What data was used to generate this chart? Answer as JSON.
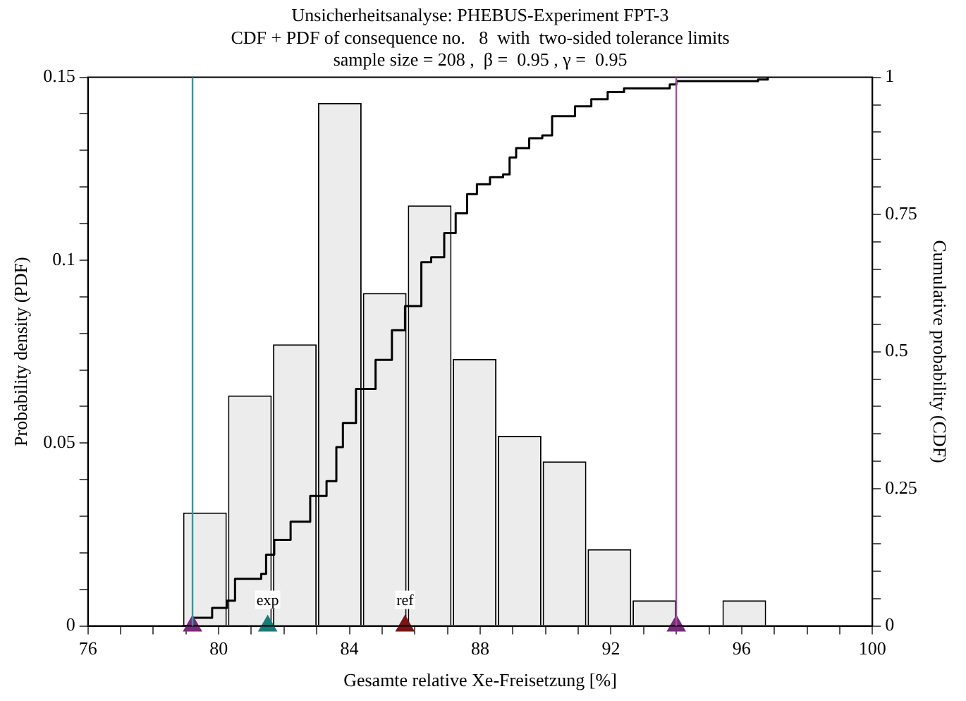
{
  "chart_data": {
    "type": "histogram",
    "title": "Unsicherheitsanalyse: PHEBUS-Experiment FPT-3",
    "subtitle": "CDF + PDF of consequence no.   8  with  two-sided tolerance limits\nsample size = 208 ,  β =  0.95 , γ =  0.95",
    "xlabel": "Gesamte relative Xe-Freisetzung [%]",
    "ylabel": "Probability density (PDF)",
    "y2label": "Cumulative probability (CDF)",
    "bins": [
      78.89,
      80.27,
      81.64,
      83.02,
      84.39,
      85.77,
      87.14,
      88.52,
      89.89,
      91.27,
      92.64,
      94.02,
      95.39,
      96.77
    ],
    "values": [
      0.031,
      0.063,
      0.077,
      0.143,
      0.091,
      0.115,
      0.073,
      0.052,
      0.045,
      0.021,
      0.007,
      0,
      0.007
    ],
    "color": "#ececec",
    "series": [
      {
        "type": "step",
        "axis": "y2",
        "marker": "none",
        "color": "#000000",
        "x": [
          78.89,
          79.19,
          79.8,
          80.25,
          80.5,
          81.3,
          81.45,
          81.7,
          82.2,
          82.8,
          83.3,
          83.6,
          83.8,
          84.2,
          84.8,
          85.3,
          85.7,
          86.2,
          86.5,
          86.9,
          87.25,
          87.6,
          87.9,
          88.3,
          88.7,
          88.9,
          89.1,
          89.5,
          89.9,
          90.2,
          90.9,
          91.4,
          91.9,
          92.4,
          93.8,
          94.0,
          96.5,
          96.8
        ],
        "values": [
          0,
          0.015,
          0.033,
          0.046,
          0.086,
          0.095,
          0.13,
          0.157,
          0.19,
          0.237,
          0.264,
          0.326,
          0.37,
          0.432,
          0.485,
          0.539,
          0.583,
          0.663,
          0.672,
          0.716,
          0.752,
          0.787,
          0.805,
          0.818,
          0.823,
          0.854,
          0.871,
          0.889,
          0.894,
          0.929,
          0.947,
          0.96,
          0.973,
          0.98,
          0.987,
          0.993,
          0.996,
          1.0
        ]
      },
      {
        "type": "scatter",
        "color": "#7a2a7a",
        "x": [
          79.2,
          94.0
        ],
        "values": [
          0,
          0
        ]
      },
      {
        "type": "scatter",
        "name": "exp",
        "color": "#1a7a7a",
        "x": [
          81.5
        ],
        "values": [
          0
        ]
      },
      {
        "type": "scatter",
        "name": "ref",
        "color": "#7a1515",
        "x": [
          85.7
        ],
        "values": [
          0
        ]
      }
    ],
    "marker": "triangle",
    "ref_lines": [
      {
        "axis": "x",
        "value": 79.2,
        "color": "#2a9d9d"
      },
      {
        "axis": "x",
        "value": 94.0,
        "color": "#a050a0"
      }
    ],
    "xlim": [
      76,
      100
    ],
    "xticks": [
      76,
      {
        "value": 77,
        "label": null
      },
      {
        "value": 78,
        "label": null
      },
      {
        "value": 79,
        "label": null
      },
      80,
      {
        "value": 81,
        "label": null
      },
      {
        "value": 82,
        "label": null
      },
      {
        "value": 83,
        "label": null
      },
      84,
      {
        "value": 85,
        "label": null
      },
      {
        "value": 86,
        "label": null
      },
      {
        "value": 87,
        "label": null
      },
      88,
      {
        "value": 89,
        "label": null
      },
      {
        "value": 90,
        "label": null
      },
      {
        "value": 91,
        "label": null
      },
      92,
      {
        "value": 93,
        "label": null
      },
      {
        "value": 94,
        "label": null
      },
      {
        "value": 95,
        "label": null
      },
      96,
      {
        "value": 97,
        "label": null
      },
      {
        "value": 98,
        "label": null
      },
      {
        "value": 99,
        "label": null
      },
      100
    ],
    "ylim": [
      0,
      0.15
    ],
    "yticks": [
      0,
      {
        "value": 0.01,
        "label": null
      },
      {
        "value": 0.02,
        "label": null
      },
      {
        "value": 0.03,
        "label": null
      },
      {
        "value": 0.04,
        "label": null
      },
      0.05,
      {
        "value": 0.06,
        "label": null
      },
      {
        "value": 0.07,
        "label": null
      },
      {
        "value": 0.08,
        "label": null
      },
      {
        "value": 0.09,
        "label": null
      },
      0.1,
      {
        "value": 0.11,
        "label": null
      },
      {
        "value": 0.12,
        "label": null
      },
      {
        "value": 0.13,
        "label": null
      },
      {
        "value": 0.14,
        "label": null
      },
      0.15
    ],
    "y2lim": [
      0,
      1
    ],
    "y2ticks": [
      0,
      {
        "value": 0.05,
        "label": null
      },
      {
        "value": 0.1,
        "label": null
      },
      {
        "value": 0.15,
        "label": null
      },
      {
        "value": 0.2,
        "label": null
      },
      0.25,
      {
        "value": 0.3,
        "label": null
      },
      {
        "value": 0.35,
        "label": null
      },
      {
        "value": 0.4,
        "label": null
      },
      {
        "value": 0.45,
        "label": null
      },
      0.5,
      {
        "value": 0.55,
        "label": null
      },
      {
        "value": 0.6,
        "label": null
      },
      {
        "value": 0.65,
        "label": null
      },
      {
        "value": 0.7,
        "label": null
      },
      0.75,
      {
        "value": 0.8,
        "label": null
      },
      {
        "value": 0.85,
        "label": null
      },
      {
        "value": 0.9,
        "label": null
      },
      {
        "value": 0.95,
        "label": null
      },
      1
    ],
    "grid": false,
    "legend": false
  }
}
